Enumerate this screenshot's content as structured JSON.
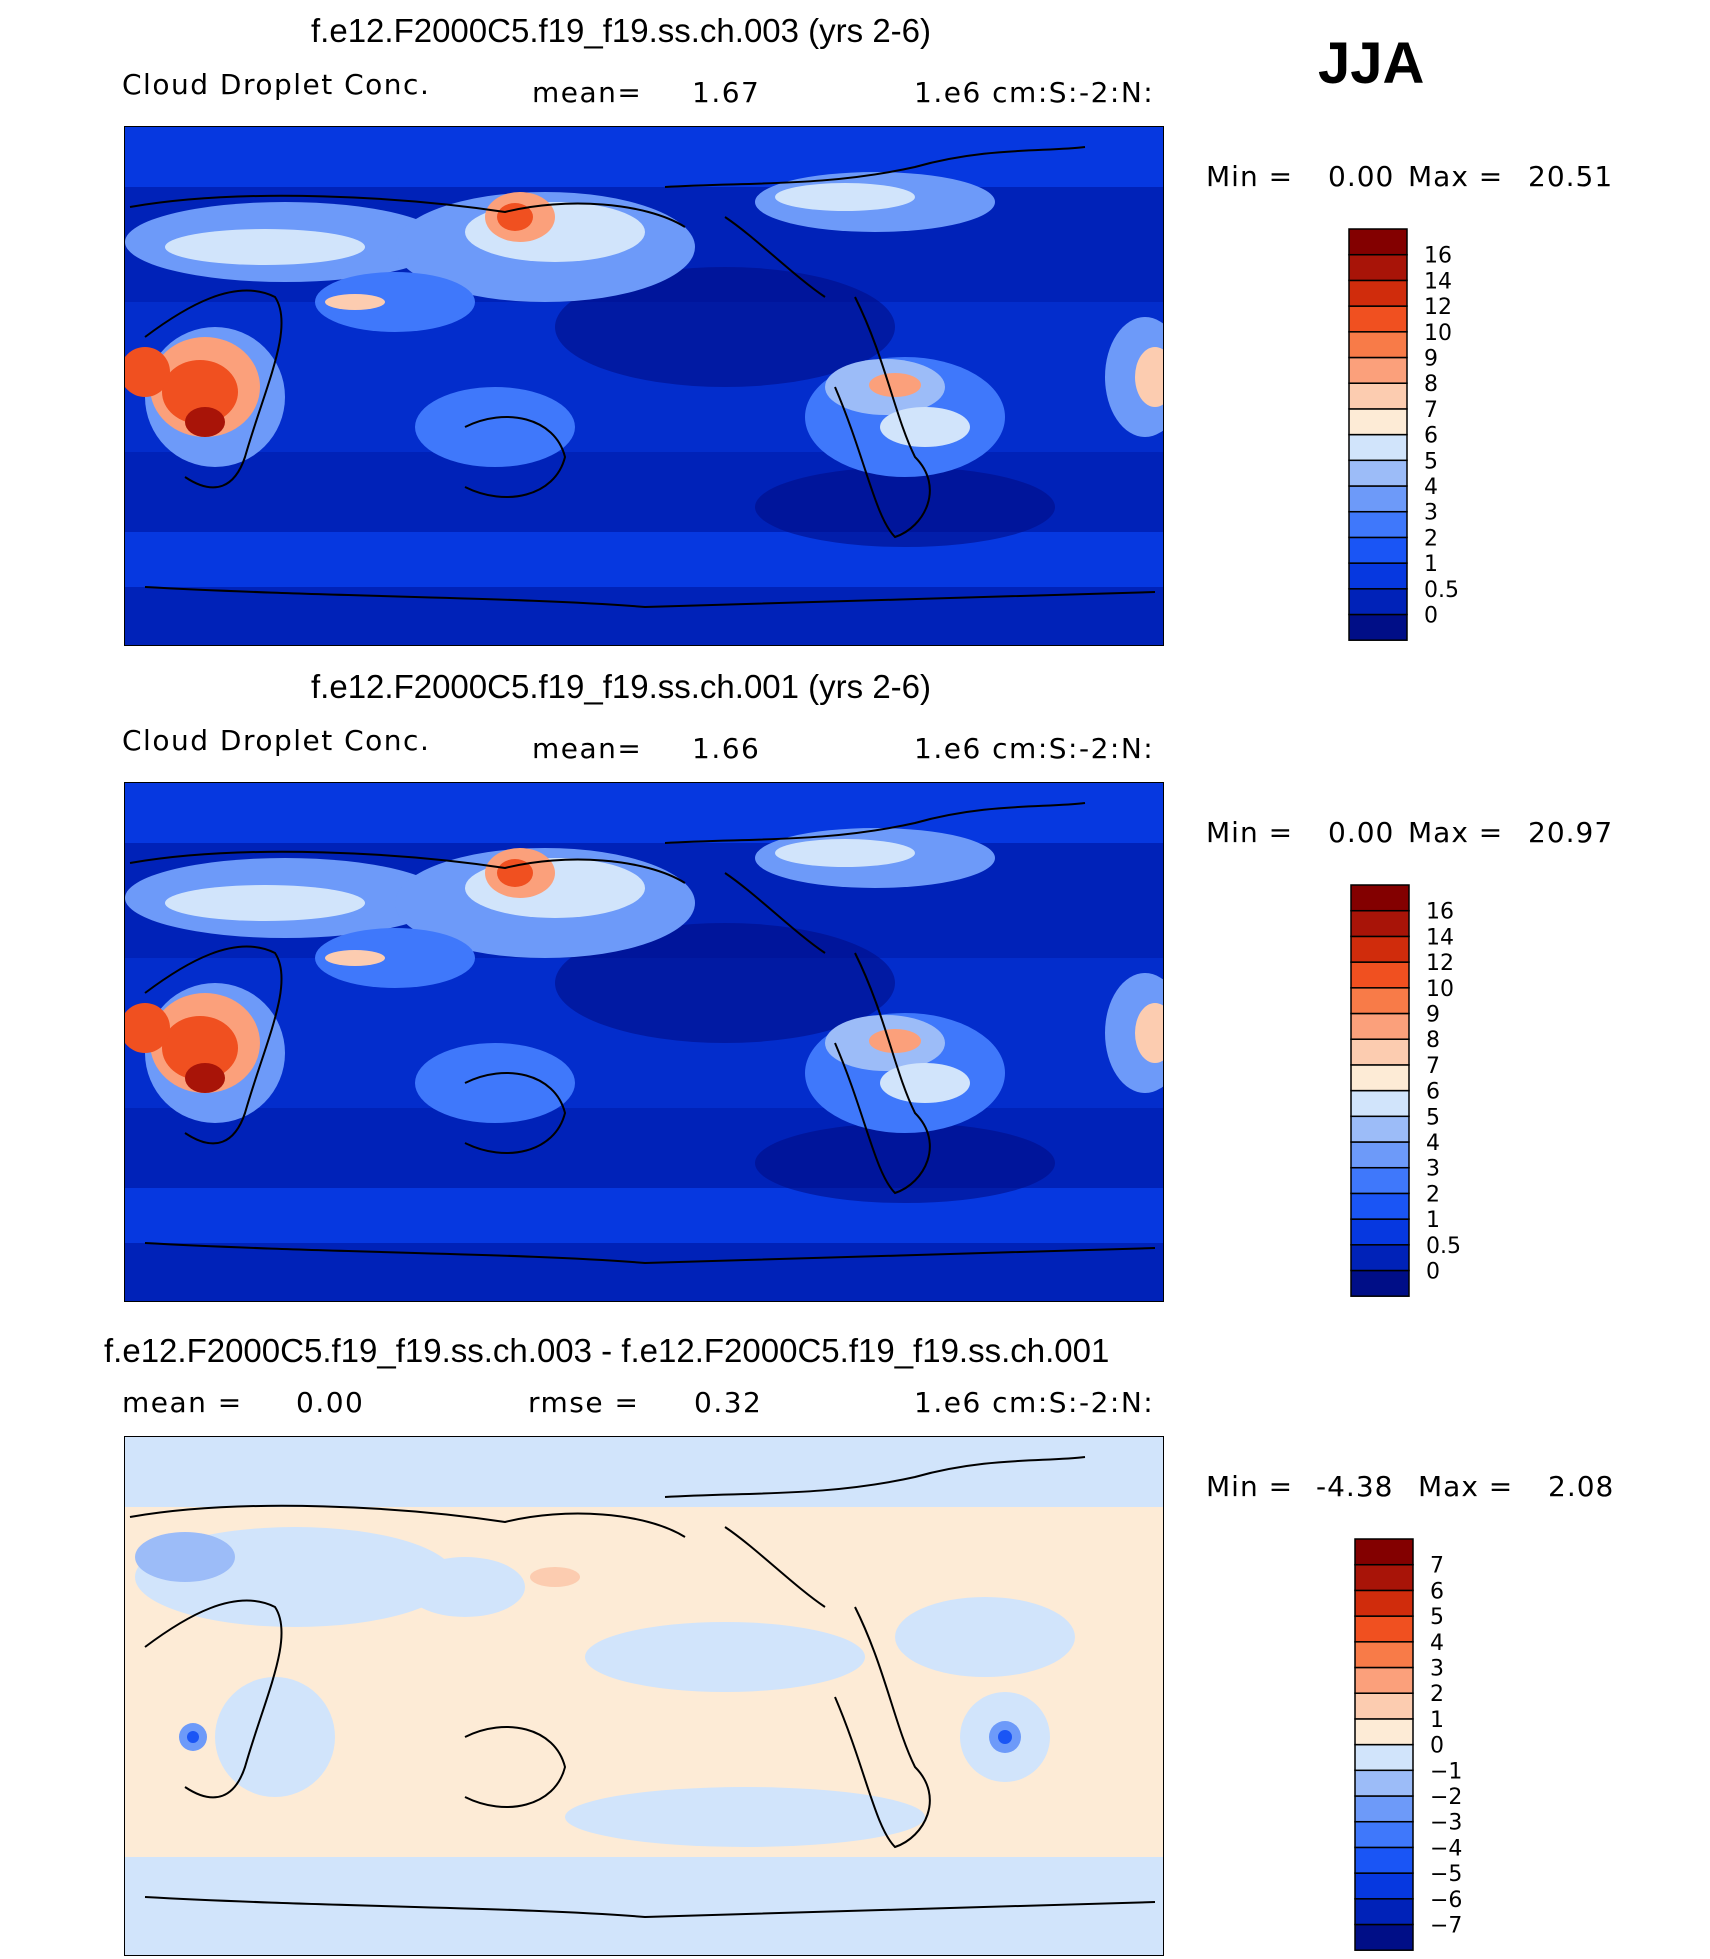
{
  "season": "JJA",
  "panels": [
    {
      "title": "f.e12.F2000C5.f19_f19.ss.ch.003 (yrs 2-6)",
      "variable": "Cloud Droplet Conc.",
      "stat_label": "mean=",
      "stat_value": "1.67",
      "units": "1.e6 cm:S:-2:N:",
      "min_label": "Min =",
      "min_value": "0.00",
      "max_label": "Max =",
      "max_value": "20.51"
    },
    {
      "title": "f.e12.F2000C5.f19_f19.ss.ch.001 (yrs 2-6)",
      "variable": "Cloud Droplet Conc.",
      "stat_label": "mean=",
      "stat_value": "1.66",
      "units": "1.e6 cm:S:-2:N:",
      "min_label": "Min =",
      "min_value": "0.00",
      "max_label": "Max =",
      "max_value": "20.97"
    },
    {
      "title": "f.e12.F2000C5.f19_f19.ss.ch.003 - f.e12.F2000C5.f19_f19.ss.ch.001",
      "stat_label": "mean =",
      "stat_value": "0.00",
      "stat2_label": "rmse =",
      "stat2_value": "0.32",
      "units": "1.e6 cm:S:-2:N:",
      "min_label": "Min =",
      "min_value": "-4.38",
      "max_label": "Max =",
      "max_value": "2.08"
    }
  ],
  "chart_data": [
    {
      "type": "heatmap",
      "projection": "global cylindrical equidistant, Pacific-centered",
      "colorbar": {
        "levels": [
          "0",
          "0.5",
          "1",
          "2",
          "3",
          "4",
          "5",
          "6",
          "7",
          "8",
          "9",
          "10",
          "12",
          "14",
          "16"
        ],
        "colors": [
          "#000e87",
          "#0022b8",
          "#0638e0",
          "#1a55f5",
          "#3f78fb",
          "#6d9af9",
          "#9cbcf8",
          "#d1e4fb",
          "#fdebd6",
          "#fcccb0",
          "#fba07b",
          "#f87b48",
          "#f05020",
          "#d02c0c",
          "#a81408",
          "#830000"
        ]
      }
    },
    {
      "type": "heatmap",
      "projection": "global cylindrical equidistant, Pacific-centered",
      "colorbar": {
        "levels": [
          "0",
          "0.5",
          "1",
          "2",
          "3",
          "4",
          "5",
          "6",
          "7",
          "8",
          "9",
          "10",
          "12",
          "14",
          "16"
        ],
        "colors": [
          "#000e87",
          "#0022b8",
          "#0638e0",
          "#1a55f5",
          "#3f78fb",
          "#6d9af9",
          "#9cbcf8",
          "#d1e4fb",
          "#fdebd6",
          "#fcccb0",
          "#fba07b",
          "#f87b48",
          "#f05020",
          "#d02c0c",
          "#a81408",
          "#830000"
        ]
      }
    },
    {
      "type": "heatmap",
      "projection": "global cylindrical equidistant, Pacific-centered",
      "colorbar": {
        "levels": [
          "-7",
          "-6",
          "-5",
          "-4",
          "-3",
          "-2",
          "-1",
          "0",
          "1",
          "2",
          "3",
          "4",
          "5",
          "6",
          "7"
        ],
        "colors": [
          "#000e87",
          "#0022b8",
          "#0638e0",
          "#1a55f5",
          "#3f78fb",
          "#6d9af9",
          "#9cbcf8",
          "#d1e4fb",
          "#fdebd6",
          "#fcccb0",
          "#fba07b",
          "#f87b48",
          "#f05020",
          "#d02c0c",
          "#a81408",
          "#830000"
        ]
      }
    }
  ]
}
